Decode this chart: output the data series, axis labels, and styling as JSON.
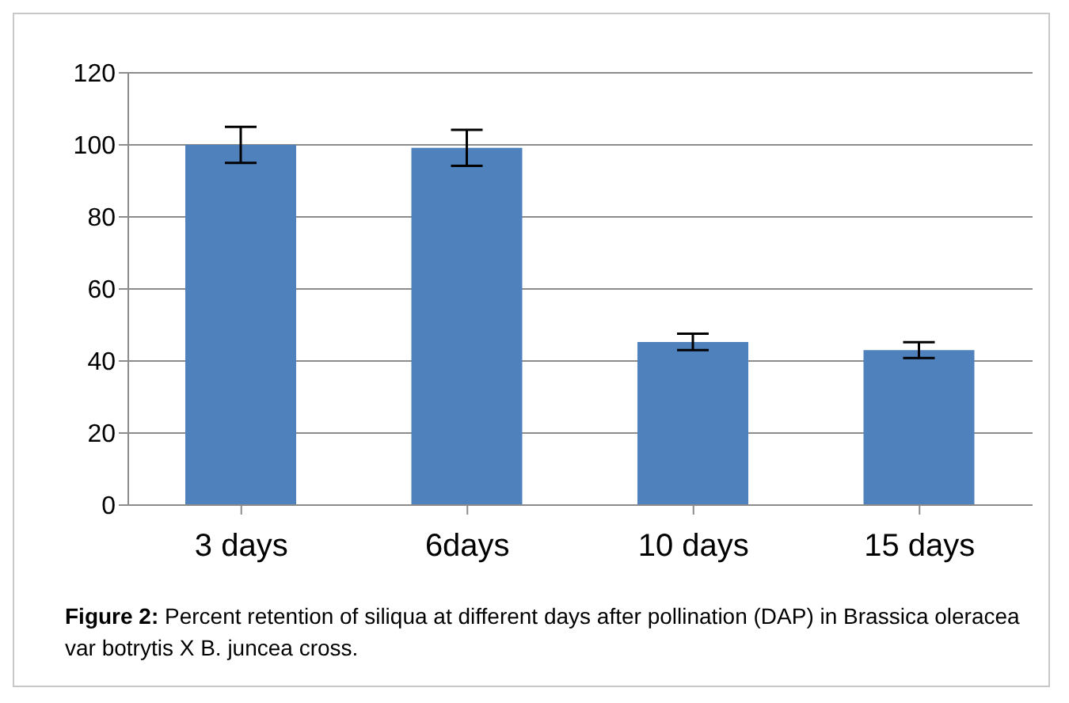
{
  "chart_data": {
    "type": "bar",
    "categories": [
      "3 days",
      "6days",
      "10 days",
      "15 days"
    ],
    "values": [
      100,
      99.2,
      45.3,
      43
    ],
    "errors": [
      5,
      5,
      2.3,
      2.2
    ],
    "color": "#4f81bd",
    "ylim": [
      0,
      120
    ],
    "yticks": [
      0,
      20,
      40,
      60,
      80,
      100,
      120
    ],
    "grid": "y",
    "annotations": [
      "Figure 2: Percent retention of siliqua at different days after pollination (DAP) in Brassica oleracea var botrytis X B. juncea cross."
    ]
  }
}
